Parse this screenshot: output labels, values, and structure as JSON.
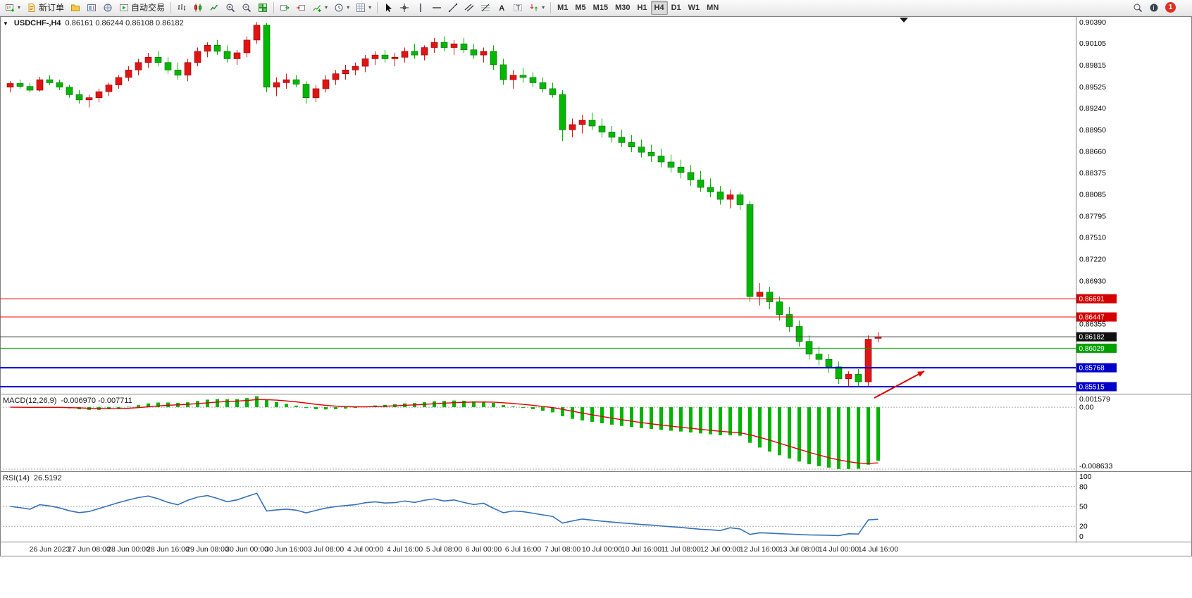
{
  "toolbar": {
    "new_order_label": "新订单",
    "auto_trading_label": "自动交易",
    "timeframes": [
      "M1",
      "M5",
      "M15",
      "M30",
      "H1",
      "H4",
      "D1",
      "W1",
      "MN"
    ],
    "active_timeframe": "H4",
    "notification_badge": "1"
  },
  "chart": {
    "title_symbol": "USDCHF-,H4",
    "ohlc_display": "0.86161 0.86244 0.86108 0.86182",
    "macd_title": "MACD(12,26,9)",
    "macd_values": "-0.006970 -0.007711",
    "rsi_title": "RSI(14)",
    "rsi_value": "26.5192"
  },
  "chart_data": {
    "type": "candlestick",
    "symbol": "USDCHF-",
    "period": "H4",
    "colors": {
      "bull": "#e01414",
      "bear": "#00b800",
      "macd_histogram": "#00b400",
      "macd_signal": "#e00000",
      "rsi_line": "#3570b8",
      "grid_dash": "#a8a8a8"
    },
    "main": {
      "ylim": [
        0.8543,
        0.9046
      ],
      "yticks": [
        "0.90390",
        "0.90105",
        "0.89815",
        "0.89525",
        "0.89240",
        "0.88950",
        "0.88660",
        "0.88375",
        "0.88085",
        "0.87795",
        "0.87510",
        "0.87220",
        "0.86930",
        "0.86355"
      ],
      "hlines": [
        {
          "price": 0.86691,
          "label": "0.86691",
          "color": "#ff0000",
          "width": 1,
          "label_bg": "#d40000"
        },
        {
          "price": 0.86447,
          "label": "0.86447",
          "color": "#ff0000",
          "width": 1,
          "label_bg": "#d40000"
        },
        {
          "price": 0.86182,
          "label": "0.86182",
          "color": "#404040",
          "width": 1,
          "label_bg": "#101010",
          "role": "current-price"
        },
        {
          "price": 0.86029,
          "label": "0.86029",
          "color": "#00a000",
          "width": 1,
          "label_bg": "#00a000"
        },
        {
          "price": 0.85768,
          "label": "0.85768",
          "color": "#0000d8",
          "width": 2,
          "label_bg": "#0000c8"
        },
        {
          "price": 0.85515,
          "label": "0.85515",
          "color": "#0000d8",
          "width": 2,
          "label_bg": "#0000c8"
        }
      ],
      "candles": [
        [
          0.8952,
          0.896,
          0.8945,
          0.8957
        ],
        [
          0.8957,
          0.8962,
          0.895,
          0.8953
        ],
        [
          0.8953,
          0.8958,
          0.8945,
          0.8948
        ],
        [
          0.8948,
          0.8966,
          0.8946,
          0.8962
        ],
        [
          0.8962,
          0.8968,
          0.8955,
          0.8958
        ],
        [
          0.8958,
          0.8962,
          0.8948,
          0.8952
        ],
        [
          0.8952,
          0.8955,
          0.8938,
          0.8942
        ],
        [
          0.8942,
          0.8948,
          0.893,
          0.8935
        ],
        [
          0.8935,
          0.8942,
          0.8925,
          0.8938
        ],
        [
          0.8938,
          0.895,
          0.8932,
          0.8946
        ],
        [
          0.8946,
          0.8958,
          0.894,
          0.8955
        ],
        [
          0.8955,
          0.8968,
          0.895,
          0.8965
        ],
        [
          0.8965,
          0.898,
          0.896,
          0.8975
        ],
        [
          0.8975,
          0.899,
          0.8968,
          0.8985
        ],
        [
          0.8985,
          0.8998,
          0.8978,
          0.8992
        ],
        [
          0.8992,
          0.9,
          0.898,
          0.8985
        ],
        [
          0.8985,
          0.8992,
          0.897,
          0.8975
        ],
        [
          0.8975,
          0.8985,
          0.8962,
          0.8968
        ],
        [
          0.8968,
          0.899,
          0.896,
          0.8985
        ],
        [
          0.8985,
          0.9005,
          0.898,
          0.9
        ],
        [
          0.9,
          0.9012,
          0.8992,
          0.9008
        ],
        [
          0.9008,
          0.9015,
          0.8995,
          0.9
        ],
        [
          0.9,
          0.9008,
          0.8985,
          0.899
        ],
        [
          0.899,
          0.9002,
          0.8982,
          0.8998
        ],
        [
          0.8998,
          0.902,
          0.8992,
          0.9015
        ],
        [
          0.9015,
          0.9039,
          0.901,
          0.9035
        ],
        [
          0.9035,
          0.9038,
          0.8945,
          0.8952
        ],
        [
          0.8952,
          0.8965,
          0.894,
          0.8958
        ],
        [
          0.8958,
          0.897,
          0.895,
          0.8962
        ],
        [
          0.8962,
          0.8968,
          0.8952,
          0.8956
        ],
        [
          0.8956,
          0.896,
          0.893,
          0.8938
        ],
        [
          0.8938,
          0.8955,
          0.8932,
          0.895
        ],
        [
          0.895,
          0.8968,
          0.8945,
          0.8962
        ],
        [
          0.8962,
          0.8975,
          0.8955,
          0.897
        ],
        [
          0.897,
          0.8982,
          0.8962,
          0.8975
        ],
        [
          0.8975,
          0.8985,
          0.8968,
          0.898
        ],
        [
          0.898,
          0.8995,
          0.8972,
          0.899
        ],
        [
          0.899,
          0.9,
          0.8982,
          0.8995
        ],
        [
          0.8995,
          0.9002,
          0.8985,
          0.899
        ],
        [
          0.899,
          0.8998,
          0.898,
          0.8992
        ],
        [
          0.8992,
          0.9005,
          0.8985,
          0.9
        ],
        [
          0.9,
          0.901,
          0.899,
          0.8995
        ],
        [
          0.8995,
          0.9008,
          0.8988,
          0.9005
        ],
        [
          0.9005,
          0.9018,
          0.8998,
          0.9012
        ],
        [
          0.9012,
          0.902,
          0.9,
          0.9005
        ],
        [
          0.9005,
          0.9015,
          0.8995,
          0.901
        ],
        [
          0.901,
          0.9018,
          0.8998,
          0.9002
        ],
        [
          0.9002,
          0.901,
          0.899,
          0.8995
        ],
        [
          0.8995,
          0.9005,
          0.8985,
          0.9
        ],
        [
          0.9,
          0.9008,
          0.8975,
          0.8982
        ],
        [
          0.8982,
          0.899,
          0.8955,
          0.8962
        ],
        [
          0.8962,
          0.8975,
          0.895,
          0.8968
        ],
        [
          0.8968,
          0.8978,
          0.8958,
          0.8965
        ],
        [
          0.8965,
          0.8972,
          0.8952,
          0.8958
        ],
        [
          0.8958,
          0.8965,
          0.8945,
          0.895
        ],
        [
          0.895,
          0.8958,
          0.8938,
          0.8942
        ],
        [
          0.8942,
          0.8948,
          0.888,
          0.8895
        ],
        [
          0.8895,
          0.891,
          0.8885,
          0.8902
        ],
        [
          0.8902,
          0.8915,
          0.889,
          0.8908
        ],
        [
          0.8908,
          0.8918,
          0.8895,
          0.89
        ],
        [
          0.89,
          0.891,
          0.8885,
          0.8892
        ],
        [
          0.8892,
          0.89,
          0.8878,
          0.8885
        ],
        [
          0.8885,
          0.8895,
          0.8872,
          0.8878
        ],
        [
          0.8878,
          0.8888,
          0.8865,
          0.8872
        ],
        [
          0.8872,
          0.8882,
          0.8858,
          0.8865
        ],
        [
          0.8865,
          0.8875,
          0.8852,
          0.886
        ],
        [
          0.886,
          0.887,
          0.8845,
          0.8852
        ],
        [
          0.8852,
          0.8862,
          0.8838,
          0.8845
        ],
        [
          0.8845,
          0.8855,
          0.883,
          0.8838
        ],
        [
          0.8838,
          0.8848,
          0.882,
          0.8828
        ],
        [
          0.8828,
          0.884,
          0.8812,
          0.8818
        ],
        [
          0.8818,
          0.883,
          0.8805,
          0.8812
        ],
        [
          0.8812,
          0.882,
          0.8795,
          0.8802
        ],
        [
          0.8802,
          0.8815,
          0.879,
          0.8808
        ],
        [
          0.8808,
          0.8812,
          0.8788,
          0.8795
        ],
        [
          0.8795,
          0.88,
          0.8665,
          0.8672
        ],
        [
          0.8672,
          0.869,
          0.866,
          0.8678
        ],
        [
          0.8678,
          0.8685,
          0.8655,
          0.8665
        ],
        [
          0.8665,
          0.8672,
          0.864,
          0.8648
        ],
        [
          0.8648,
          0.8658,
          0.8625,
          0.8632
        ],
        [
          0.8632,
          0.864,
          0.8605,
          0.8612
        ],
        [
          0.8612,
          0.862,
          0.8588,
          0.8595
        ],
        [
          0.8595,
          0.8605,
          0.858,
          0.8588
        ],
        [
          0.8588,
          0.8595,
          0.857,
          0.8578
        ],
        [
          0.8578,
          0.8585,
          0.8555,
          0.8562
        ],
        [
          0.8562,
          0.8572,
          0.8552,
          0.8568
        ],
        [
          0.8568,
          0.8575,
          0.85515,
          0.8558
        ],
        [
          0.8558,
          0.862,
          0.8551,
          0.8615
        ],
        [
          0.86161,
          0.86244,
          0.86108,
          0.86182
        ]
      ],
      "x_labels": [
        {
          "bar": 4,
          "label": "26 Jun 2023"
        },
        {
          "bar": 8,
          "label": "27 Jun 08:00"
        },
        {
          "bar": 12,
          "label": "28 Jun 00:00"
        },
        {
          "bar": 16,
          "label": "28 Jun 16:00"
        },
        {
          "bar": 20,
          "label": "29 Jun 08:00"
        },
        {
          "bar": 24,
          "label": "30 Jun 00:00"
        },
        {
          "bar": 28,
          "label": "30 Jun 16:00"
        },
        {
          "bar": 32,
          "label": "3 Jul 08:00"
        },
        {
          "bar": 36,
          "label": "4 Jul 00:00"
        },
        {
          "bar": 40,
          "label": "4 Jul 16:00"
        },
        {
          "bar": 44,
          "label": "5 Jul 08:00"
        },
        {
          "bar": 48,
          "label": "6 Jul 00:00"
        },
        {
          "bar": 52,
          "label": "6 Jul 16:00"
        },
        {
          "bar": 56,
          "label": "7 Jul 08:00"
        },
        {
          "bar": 60,
          "label": "10 Jul 00:00"
        },
        {
          "bar": 64,
          "label": "10 Jul 16:00"
        },
        {
          "bar": 68,
          "label": "11 Jul 08:00"
        },
        {
          "bar": 72,
          "label": "12 Jul 00:00"
        },
        {
          "bar": 76,
          "label": "12 Jul 16:00"
        },
        {
          "bar": 80,
          "label": "13 Jul 08:00"
        },
        {
          "bar": 84,
          "label": "14 Jul 00:00"
        },
        {
          "bar": 88,
          "label": "14 Jul 16:00"
        }
      ]
    },
    "macd": {
      "params": [
        12,
        26,
        9
      ],
      "current": [
        -0.00697,
        -0.007711
      ],
      "ylim": [
        -0.008633,
        0.001579
      ],
      "yticks": [
        {
          "v": 0.001579,
          "label": "0.001579"
        },
        {
          "v": 0,
          "label": "0.00"
        },
        {
          "v": -0.008633,
          "label": "-0.008633"
        }
      ]
    },
    "rsi": {
      "period": 14,
      "current": 26.5192,
      "ylim": [
        0,
        100
      ],
      "levels": [
        80,
        50,
        20
      ],
      "yticks": [
        {
          "v": 100,
          "label": "100"
        },
        {
          "v": 80,
          "label": "80"
        },
        {
          "v": 50,
          "label": "50"
        },
        {
          "v": 20,
          "label": "20"
        },
        {
          "v": 0,
          "label": "0"
        }
      ]
    },
    "annotations": [
      {
        "type": "arrow",
        "color": "#e00000",
        "from": [
          1241,
          565
        ],
        "to": [
          1312,
          527
        ]
      }
    ],
    "shift_marker_x": 1283
  }
}
